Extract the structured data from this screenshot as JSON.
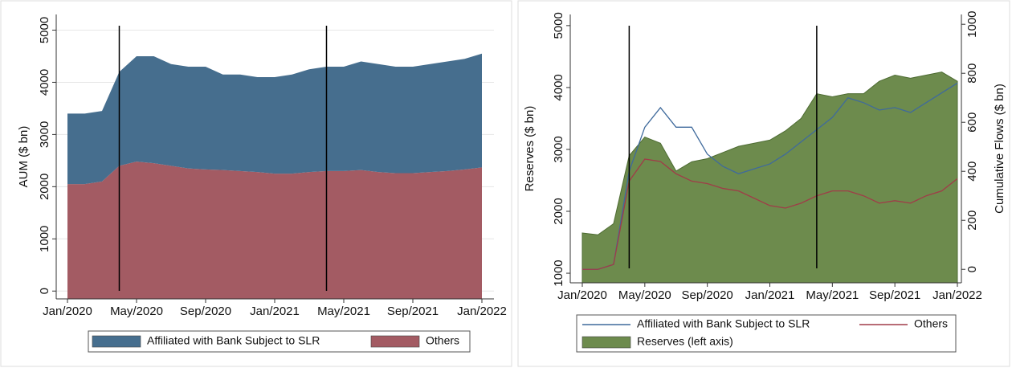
{
  "chart_data": [
    {
      "type": "stacked-area",
      "ylabel": "AUM ($ bn)",
      "x": [
        "Jan/2020",
        "Feb/2020",
        "Mar/2020",
        "Apr/2020",
        "May/2020",
        "Jun/2020",
        "Jul/2020",
        "Aug/2020",
        "Sep/2020",
        "Oct/2020",
        "Nov/2020",
        "Dec/2020",
        "Jan/2021",
        "Feb/2021",
        "Mar/2021",
        "Apr/2021",
        "May/2021",
        "Jun/2021",
        "Jul/2021",
        "Aug/2021",
        "Sep/2021",
        "Oct/2021",
        "Nov/2021",
        "Dec/2021",
        "Jan/2022"
      ],
      "xticks": [
        "Jan/2020",
        "May/2020",
        "Sep/2020",
        "Jan/2021",
        "May/2021",
        "Sep/2021",
        "Jan/2022"
      ],
      "vlines": [
        "Apr/2020",
        "Apr/2021"
      ],
      "ylim": [
        -150,
        5300
      ],
      "yticks": [
        0,
        1000,
        2000,
        3000,
        4000,
        5000
      ],
      "grid": true,
      "series": [
        {
          "name": "Affiliated with Bank Subject to SLR",
          "color": "#466e8e",
          "values": [
            1350,
            1350,
            1350,
            1800,
            2020,
            2050,
            1950,
            1950,
            1970,
            1830,
            1850,
            1820,
            1850,
            1900,
            1970,
            2000,
            2000,
            2080,
            2070,
            2040,
            2040,
            2070,
            2100,
            2120,
            2180
          ]
        },
        {
          "name": "Others",
          "color": "#a35b63",
          "values": [
            2050,
            2050,
            2100,
            2400,
            2480,
            2450,
            2400,
            2350,
            2330,
            2320,
            2300,
            2280,
            2250,
            2250,
            2280,
            2300,
            2300,
            2320,
            2280,
            2260,
            2260,
            2280,
            2300,
            2330,
            2370
          ]
        }
      ]
    },
    {
      "type": "line",
      "ylabel": "Reserves ($ bn)",
      "y2label": "Cumulative Flows ($ bn)",
      "x": [
        "Jan/2020",
        "Feb/2020",
        "Mar/2020",
        "Apr/2020",
        "May/2020",
        "Jun/2020",
        "Jul/2020",
        "Aug/2020",
        "Sep/2020",
        "Oct/2020",
        "Nov/2020",
        "Dec/2020",
        "Jan/2021",
        "Feb/2021",
        "Mar/2021",
        "Apr/2021",
        "May/2021",
        "Jun/2021",
        "Jul/2021",
        "Aug/2021",
        "Sep/2021",
        "Oct/2021",
        "Nov/2021",
        "Dec/2021",
        "Jan/2022"
      ],
      "xticks": [
        "Jan/2020",
        "May/2020",
        "Sep/2020",
        "Jan/2021",
        "May/2021",
        "Sep/2021",
        "Jan/2022"
      ],
      "vlines": [
        "Apr/2020",
        "Apr/2021"
      ],
      "ylim": [
        845,
        5180
      ],
      "yticks": [
        1000,
        2000,
        3000,
        4000,
        5000
      ],
      "y2lim": [
        -55,
        1040
      ],
      "y2ticks": [
        0,
        200,
        400,
        600,
        800,
        1000
      ],
      "grid": false,
      "series": [
        {
          "name": "Affiliated with Bank Subject to SLR",
          "color": "#3f6a9c",
          "axis": "y2",
          "style": "line",
          "values": [
            0,
            0,
            20,
            400,
            580,
            660,
            580,
            580,
            470,
            420,
            390,
            410,
            430,
            470,
            520,
            570,
            620,
            700,
            680,
            650,
            660,
            640,
            680,
            720,
            760
          ]
        },
        {
          "name": "Others",
          "color": "#a03c48",
          "axis": "y2",
          "style": "line",
          "values": [
            0,
            0,
            20,
            360,
            450,
            440,
            390,
            360,
            350,
            330,
            320,
            290,
            260,
            250,
            270,
            300,
            320,
            320,
            300,
            270,
            280,
            270,
            300,
            320,
            370
          ]
        },
        {
          "name": "Reserves (left axis)",
          "color": "#6d8b4d",
          "style": "area",
          "values": [
            1650,
            1620,
            1800,
            2900,
            3200,
            3100,
            2650,
            2800,
            2850,
            2950,
            3050,
            3100,
            3150,
            3300,
            3500,
            3900,
            3850,
            3900,
            3900,
            4100,
            4200,
            4150,
            4200,
            4250,
            4100
          ]
        }
      ]
    }
  ]
}
